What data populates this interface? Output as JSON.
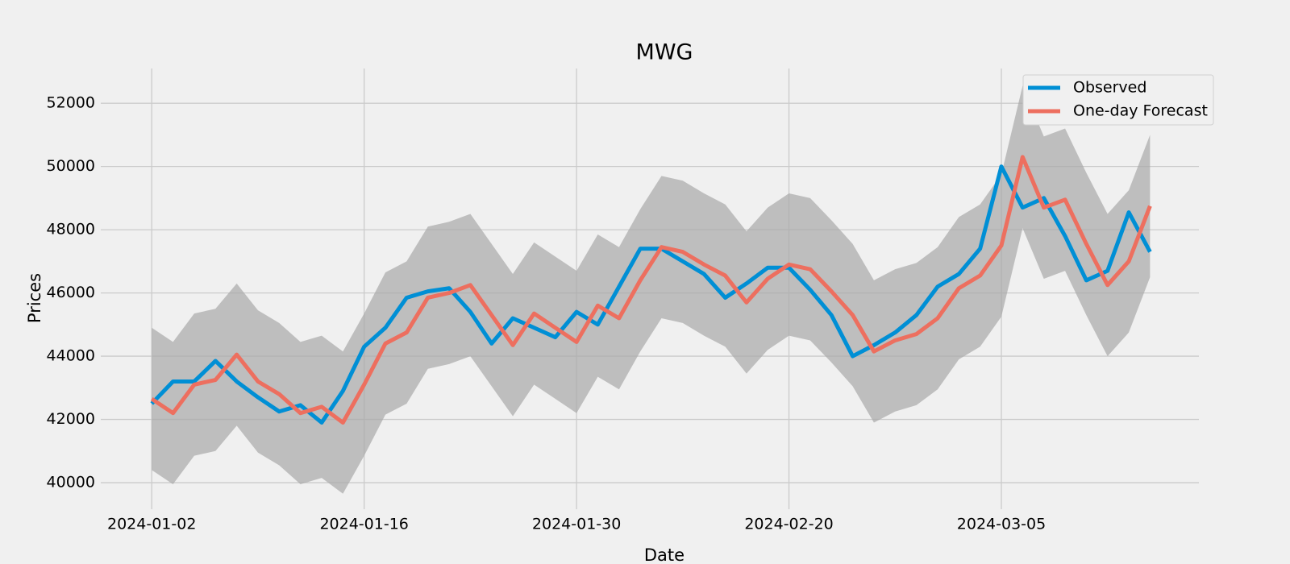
{
  "chart_data": {
    "type": "line",
    "title": "MWG",
    "xlabel": "Date",
    "ylabel": "Prices",
    "categories": [
      "2024-01-02",
      null,
      null,
      null,
      null,
      null,
      null,
      null,
      null,
      null,
      "2024-01-16",
      null,
      null,
      null,
      null,
      null,
      null,
      null,
      null,
      null,
      "2024-01-30",
      null,
      null,
      null,
      null,
      null,
      null,
      null,
      null,
      null,
      "2024-02-20",
      null,
      null,
      null,
      null,
      null,
      null,
      null,
      null,
      null,
      "2024-03-05",
      null,
      null,
      null,
      null,
      null,
      null,
      null
    ],
    "series": [
      {
        "name": "Observed",
        "color": "#008fd5",
        "values": [
          42500,
          43200,
          43200,
          43850,
          43200,
          42700,
          42250,
          42450,
          41900,
          42900,
          44300,
          44900,
          45850,
          46050,
          46150,
          45400,
          44400,
          45200,
          44900,
          44600,
          45400,
          45000,
          46200,
          47400,
          47400,
          47000,
          46600,
          45850,
          46300,
          46800,
          46800,
          46100,
          45300,
          44000,
          44350,
          44750,
          45300,
          46200,
          46600,
          47400,
          50000,
          48700,
          49000,
          47800,
          46400,
          46700,
          48550,
          47300
        ]
      },
      {
        "name": "One-day Forecast",
        "color": "#ed6f5f",
        "values": [
          42650,
          42200,
          43100,
          43250,
          44050,
          43200,
          42800,
          42200,
          42400,
          41900,
          43100,
          44400,
          44750,
          45850,
          46000,
          46250,
          45300,
          44350,
          45350,
          44900,
          44450,
          45600,
          45200,
          46400,
          47450,
          47300,
          46900,
          46550,
          45700,
          46450,
          46900,
          46750,
          46050,
          45300,
          44150,
          44500,
          44700,
          45200,
          46150,
          46550,
          47500,
          50300,
          48700,
          48950,
          47550,
          46250,
          47000,
          48750
        ]
      }
    ],
    "band": {
      "color": "#a8a8a8",
      "lower": [
        40400,
        39950,
        40850,
        41000,
        41800,
        40950,
        40550,
        39950,
        40150,
        39650,
        40850,
        42150,
        42500,
        43600,
        43750,
        44000,
        43050,
        42100,
        43100,
        42650,
        42200,
        43350,
        42950,
        44150,
        45200,
        45050,
        44650,
        44300,
        43450,
        44200,
        44650,
        44500,
        43800,
        43050,
        41900,
        42250,
        42450,
        42950,
        43900,
        44300,
        45250,
        48050,
        46450,
        46700,
        45300,
        44000,
        44750,
        46500
      ],
      "upper": [
        44900,
        44450,
        45350,
        45500,
        46300,
        45450,
        45050,
        44450,
        44650,
        44150,
        45350,
        46650,
        47000,
        48100,
        48250,
        48500,
        47550,
        46600,
        47600,
        47150,
        46700,
        47850,
        47450,
        48650,
        49700,
        49550,
        49150,
        48800,
        47950,
        48700,
        49150,
        49000,
        48300,
        47550,
        46400,
        46750,
        46950,
        47450,
        48400,
        48800,
        49750,
        52550,
        50950,
        51200,
        49800,
        48500,
        49250,
        51000
      ]
    },
    "xlim": [
      -2.4,
      49.3
    ],
    "ylim": [
      39160,
      53100
    ],
    "yticks": [
      40000,
      42000,
      44000,
      46000,
      48000,
      50000,
      52000
    ],
    "grid": true,
    "legend": "upper right"
  }
}
